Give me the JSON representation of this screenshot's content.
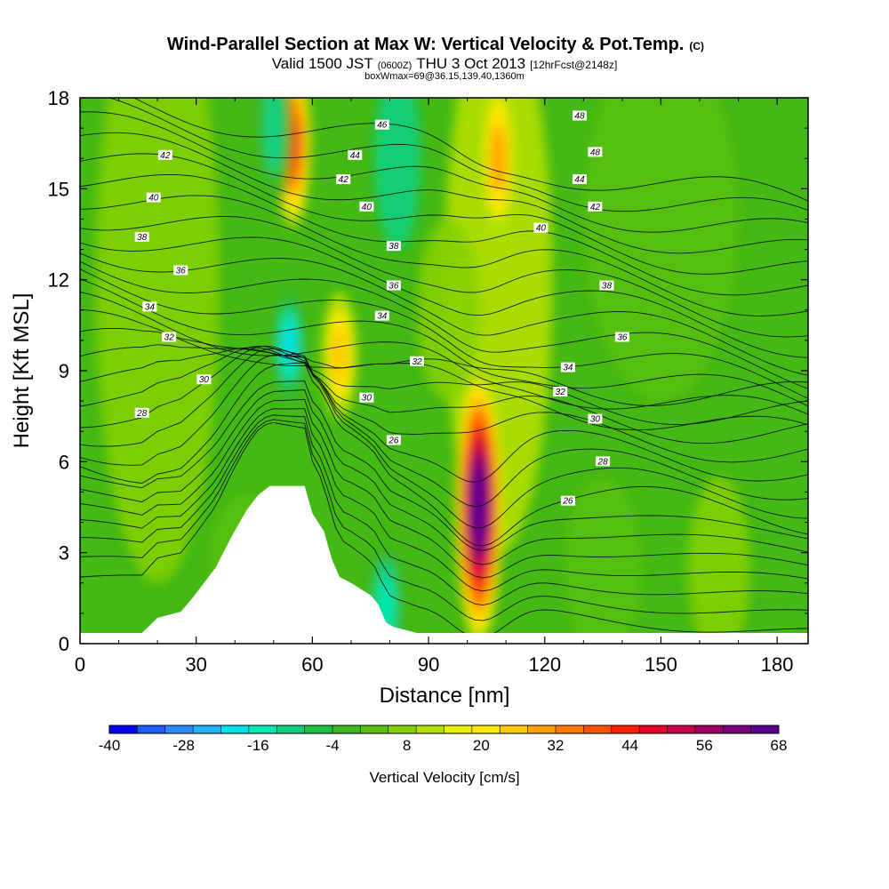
{
  "chart_data": {
    "type": "heatmap",
    "title": "Wind-Parallel Section at Max W: Vertical Velocity & Pot.Temp.",
    "title_mark": "(C)",
    "subtitle": {
      "part1": "Valid 1500 JST",
      "part2": "(0600Z)",
      "part3": "THU 3 Oct 2013",
      "part4": "[12hrFcst@2148z]"
    },
    "subtitle2": "boxWmax=69@36.15,139.40,1360m",
    "xlabel": "Distance [nm]",
    "ylabel": "Height [Kft MSL]",
    "xlim": [
      0,
      188
    ],
    "ylim": [
      0,
      18
    ],
    "xticks": [
      0,
      30,
      60,
      90,
      120,
      150,
      180
    ],
    "yticks": [
      0,
      3,
      6,
      9,
      12,
      15,
      18
    ],
    "colorbar": {
      "label": "Vertical Velocity [cm/s]",
      "range": [
        -40,
        68
      ],
      "step": 4,
      "tick_labels": [
        -40,
        -28,
        -16,
        -4,
        8,
        20,
        32,
        44,
        56,
        68
      ],
      "colors": [
        "#0000ff",
        "#1a5cff",
        "#2a8cff",
        "#20b4ff",
        "#00e0e8",
        "#00e8b4",
        "#10d080",
        "#20c040",
        "#3cb81c",
        "#58c010",
        "#84d000",
        "#b4e000",
        "#e8f000",
        "#ffe800",
        "#ffc800",
        "#ffa000",
        "#ff7a00",
        "#ff5000",
        "#ff2000",
        "#e80028",
        "#c80048",
        "#a00060",
        "#78007c",
        "#5a0090"
      ]
    },
    "w_features": [
      {
        "kind": "updraft",
        "x": 103,
        "z": 4.5,
        "max": 68
      },
      {
        "kind": "updraft",
        "x": 55,
        "z": 16.5,
        "max": 36
      },
      {
        "kind": "updraft",
        "x": 67,
        "z": 9.5,
        "max": 18
      },
      {
        "kind": "updraft",
        "x": 108,
        "z": 16.0,
        "max": 20
      },
      {
        "kind": "downdraft",
        "x": 54,
        "z": 9.8,
        "max": -24
      },
      {
        "kind": "downdraft",
        "x": 50,
        "z": 17.0,
        "max": -14
      },
      {
        "kind": "downdraft",
        "x": 79,
        "z": 1.3,
        "max": -20
      }
    ],
    "terrain": [
      [
        0,
        0.35
      ],
      [
        16,
        0.35
      ],
      [
        18,
        0.6
      ],
      [
        20,
        0.85
      ],
      [
        26,
        1.05
      ],
      [
        29,
        1.5
      ],
      [
        32,
        2.0
      ],
      [
        35,
        2.5
      ],
      [
        37,
        3.0
      ],
      [
        39,
        3.5
      ],
      [
        43,
        4.4
      ],
      [
        46,
        4.9
      ],
      [
        49,
        5.2
      ],
      [
        58,
        5.2
      ],
      [
        60,
        4.3
      ],
      [
        63,
        3.7
      ],
      [
        65,
        2.8
      ],
      [
        67,
        2.2
      ],
      [
        70,
        2.0
      ],
      [
        75,
        1.6
      ],
      [
        77,
        1.3
      ],
      [
        79,
        0.7
      ],
      [
        81,
        0.55
      ],
      [
        87,
        0.35
      ],
      [
        188,
        0.35
      ]
    ],
    "isentrope_labels": [
      {
        "text": "46",
        "x": 78,
        "z": 17.1
      },
      {
        "text": "48",
        "x": 129,
        "z": 17.4
      },
      {
        "text": "42",
        "x": 22,
        "z": 16.1
      },
      {
        "text": "44",
        "x": 71,
        "z": 16.1
      },
      {
        "text": "48",
        "x": 133,
        "z": 16.2
      },
      {
        "text": "42",
        "x": 68,
        "z": 15.3
      },
      {
        "text": "44",
        "x": 129,
        "z": 15.3
      },
      {
        "text": "40",
        "x": 19,
        "z": 14.7
      },
      {
        "text": "40",
        "x": 74,
        "z": 14.4
      },
      {
        "text": "42",
        "x": 133,
        "z": 14.4
      },
      {
        "text": "40",
        "x": 119,
        "z": 13.7
      },
      {
        "text": "38",
        "x": 16,
        "z": 13.4
      },
      {
        "text": "38",
        "x": 81,
        "z": 13.1
      },
      {
        "text": "36",
        "x": 26,
        "z": 12.3
      },
      {
        "text": "36",
        "x": 81,
        "z": 11.8
      },
      {
        "text": "38",
        "x": 136,
        "z": 11.8
      },
      {
        "text": "34",
        "x": 18,
        "z": 11.1
      },
      {
        "text": "34",
        "x": 78,
        "z": 10.8
      },
      {
        "text": "32",
        "x": 23,
        "z": 10.1
      },
      {
        "text": "36",
        "x": 140,
        "z": 10.1
      },
      {
        "text": "32",
        "x": 87,
        "z": 9.3
      },
      {
        "text": "34",
        "x": 126,
        "z": 9.1
      },
      {
        "text": "30",
        "x": 32,
        "z": 8.7
      },
      {
        "text": "32",
        "x": 124,
        "z": 8.3
      },
      {
        "text": "30",
        "x": 74,
        "z": 8.1
      },
      {
        "text": "28",
        "x": 16,
        "z": 7.6
      },
      {
        "text": "30",
        "x": 133,
        "z": 7.4
      },
      {
        "text": "26",
        "x": 81,
        "z": 6.7
      },
      {
        "text": "28",
        "x": 135,
        "z": 6.0
      },
      {
        "text": "26",
        "x": 126,
        "z": 4.7
      }
    ]
  }
}
